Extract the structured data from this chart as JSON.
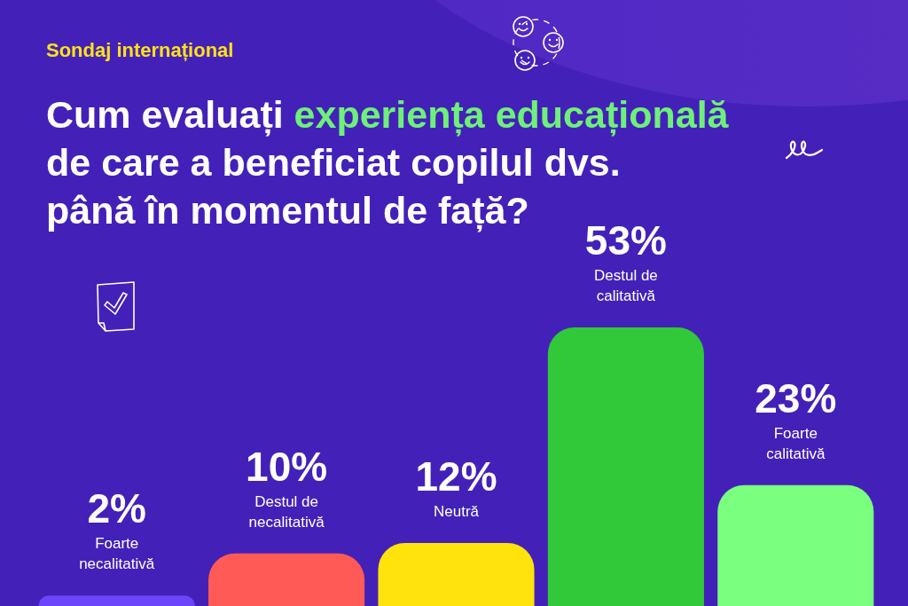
{
  "chart_data": {
    "type": "bar",
    "title": "Cum evaluați experiența educațională de care a beneficiat copilul dvs. până în momentul de față?",
    "subtitle": "Sondaj internațional",
    "categories": [
      "Foarte necalitativă",
      "Destul de necalitativă",
      "Neutră",
      "Destul de calitativă",
      "Foarte calitativă"
    ],
    "values": [
      2,
      10,
      12,
      53,
      23
    ],
    "value_labels": [
      "2%",
      "10%",
      "12%",
      "53%",
      "23%"
    ],
    "colors": [
      "#6c44f9",
      "#ff5a55",
      "#ffe30a",
      "#31c83a",
      "#7aff7f"
    ]
  }
}
